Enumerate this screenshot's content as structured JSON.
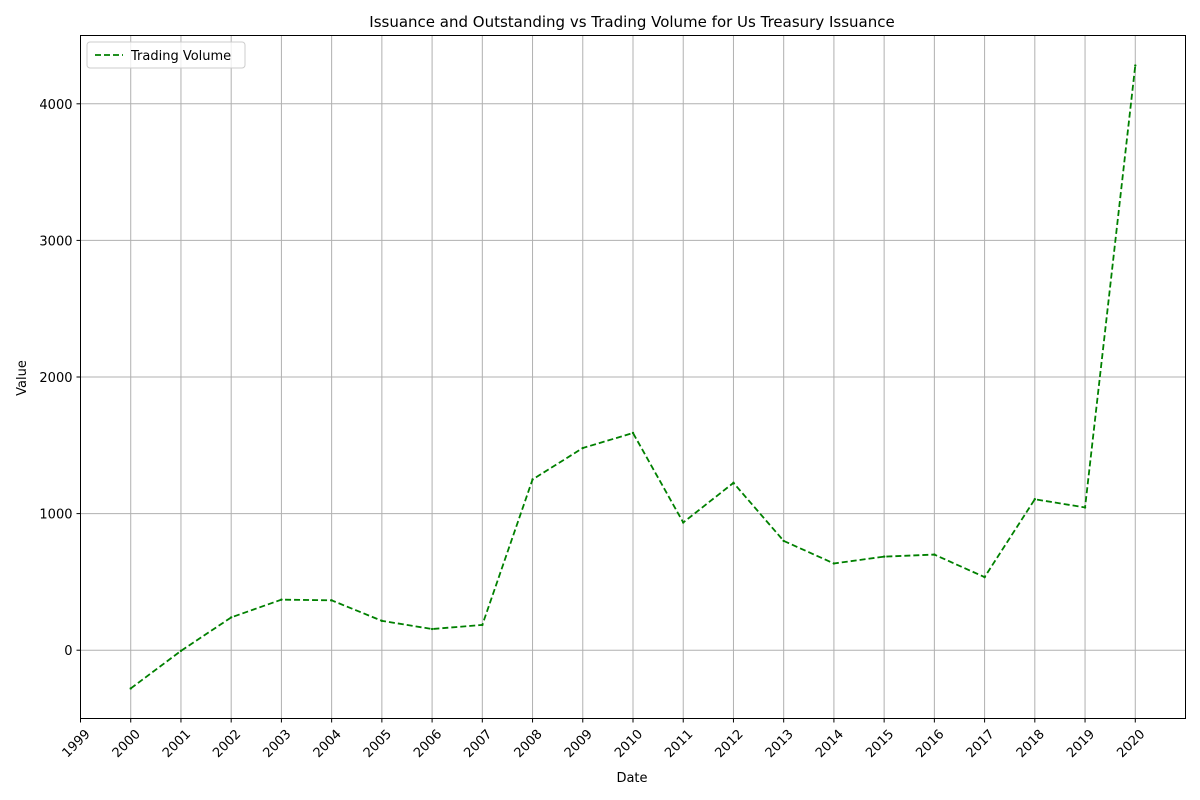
{
  "chart_data": {
    "type": "line",
    "title": "Issuance and Outstanding vs Trading Volume for Us Treasury Issuance",
    "xlabel": "Date",
    "ylabel": "Value",
    "x_ticks": [
      "1999",
      "2000",
      "2001",
      "2002",
      "2003",
      "2004",
      "2005",
      "2006",
      "2007",
      "2008",
      "2009",
      "2010",
      "2011",
      "2012",
      "2013",
      "2014",
      "2015",
      "2016",
      "2017",
      "2018",
      "2019",
      "2020"
    ],
    "y_ticks": [
      0,
      1000,
      2000,
      3000,
      4000
    ],
    "xlim": [
      1999,
      2021
    ],
    "ylim": [
      -500,
      4500
    ],
    "grid": true,
    "legend_position": "top-left",
    "series": [
      {
        "name": "Trading Volume",
        "color": "#008000",
        "line_style": "dashed",
        "x": [
          2000,
          2001,
          2002,
          2003,
          2004,
          2005,
          2006,
          2007,
          2008,
          2009,
          2010,
          2011,
          2012,
          2013,
          2014,
          2015,
          2016,
          2017,
          2018,
          2019,
          2020
        ],
        "values": [
          -280,
          -5,
          240,
          370,
          365,
          215,
          155,
          185,
          1250,
          1480,
          1590,
          935,
          1225,
          800,
          635,
          685,
          700,
          535,
          1105,
          1045,
          4280
        ]
      }
    ]
  }
}
